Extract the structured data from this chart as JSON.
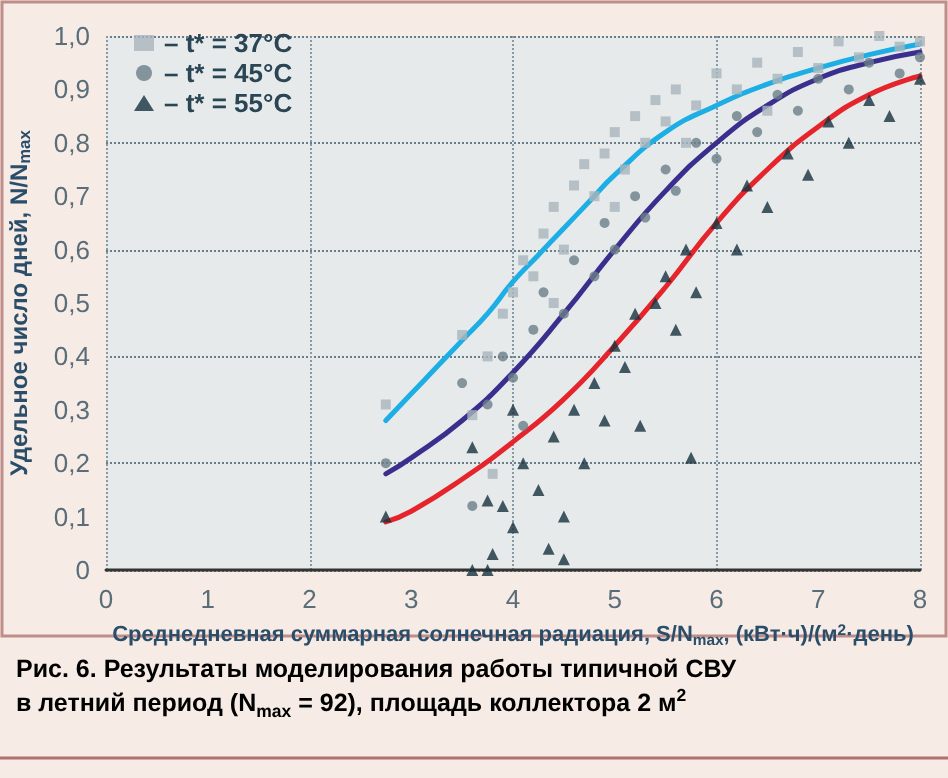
{
  "chart_data": {
    "type": "scatter",
    "xlabel": "Среднедневная суммарная солнечная радиация, S/N$_{max}$, (кВт·ч)/(м$^{2}$·день)",
    "ylabel": "Удельное число дней, N/N$_{max}$",
    "annotations": [
      "Рис. 6. Результаты моделирования работы типичной СВУ\nв летний период (N$_{max}$ = 92), площадь коллектора 2 м$^{2}$"
    ],
    "xlim": [
      0,
      8
    ],
    "xticks": [
      0,
      1,
      2,
      3,
      4,
      5,
      6,
      7,
      8
    ],
    "ylim": [
      0,
      1
    ],
    "yticks": [
      0,
      {
        "value": 0.1,
        "label": "0,1"
      },
      {
        "value": 0.2,
        "label": "0,2"
      },
      {
        "value": 0.3,
        "label": "0,3"
      },
      {
        "value": 0.4,
        "label": "0,4"
      },
      {
        "value": 0.5,
        "label": "0,5"
      },
      {
        "value": 0.6,
        "label": "0,6"
      },
      {
        "value": 0.7,
        "label": "0,7"
      },
      {
        "value": 0.8,
        "label": "0,8"
      },
      {
        "value": 0.9,
        "label": "0,9"
      },
      {
        "value": 1,
        "label": "1,0"
      }
    ],
    "grid": true,
    "legend": "top left",
    "series": [
      {
        "name": "– t* = 37°C",
        "type": "scatter",
        "marker": "square",
        "color": "#a9b5bd",
        "x": [
          2.75,
          3.5,
          3.6,
          3.75,
          3.8,
          3.9,
          4.0,
          4.1,
          4.2,
          4.3,
          4.4,
          4.4,
          4.5,
          4.6,
          4.7,
          4.8,
          4.9,
          5.0,
          5.0,
          5.1,
          5.2,
          5.3,
          5.4,
          5.5,
          5.6,
          5.7,
          5.8,
          6.0,
          6.2,
          6.4,
          6.5,
          6.6,
          6.8,
          7.0,
          7.2,
          7.4,
          7.6,
          7.8,
          8.0
        ],
        "values": [
          0.31,
          0.44,
          0.29,
          0.4,
          0.18,
          0.48,
          0.52,
          0.58,
          0.55,
          0.63,
          0.68,
          0.5,
          0.6,
          0.72,
          0.76,
          0.7,
          0.78,
          0.82,
          0.68,
          0.75,
          0.85,
          0.8,
          0.88,
          0.84,
          0.9,
          0.8,
          0.87,
          0.93,
          0.9,
          0.95,
          0.86,
          0.92,
          0.97,
          0.94,
          0.99,
          0.96,
          1.0,
          0.98,
          0.99
        ]
      },
      {
        "name": "– t* = 45°C",
        "type": "scatter",
        "marker": "circle",
        "color": "#6b7e89",
        "x": [
          2.75,
          3.5,
          3.6,
          3.75,
          3.9,
          4.0,
          4.1,
          4.2,
          4.3,
          4.5,
          4.6,
          4.8,
          4.9,
          5.0,
          5.2,
          5.3,
          5.5,
          5.6,
          5.8,
          6.0,
          6.2,
          6.4,
          6.6,
          6.8,
          7.0,
          7.3,
          7.5,
          7.8,
          8.0
        ],
        "values": [
          0.2,
          0.35,
          0.12,
          0.31,
          0.4,
          0.36,
          0.27,
          0.45,
          0.52,
          0.48,
          0.58,
          0.55,
          0.65,
          0.6,
          0.7,
          0.66,
          0.75,
          0.71,
          0.8,
          0.77,
          0.85,
          0.82,
          0.89,
          0.86,
          0.92,
          0.9,
          0.95,
          0.93,
          0.96
        ]
      },
      {
        "name": "– t* = 55°C",
        "type": "scatter",
        "marker": "triangle",
        "color": "#17323e",
        "x": [
          2.75,
          3.6,
          3.6,
          3.75,
          3.75,
          3.8,
          3.9,
          4.0,
          4.0,
          4.1,
          4.25,
          4.35,
          4.4,
          4.5,
          4.5,
          4.6,
          4.7,
          4.8,
          4.9,
          5.0,
          5.1,
          5.2,
          5.25,
          5.4,
          5.5,
          5.6,
          5.7,
          5.75,
          5.8,
          6.0,
          6.2,
          6.3,
          6.5,
          6.7,
          6.9,
          7.1,
          7.3,
          7.5,
          7.7,
          8.0
        ],
        "values": [
          0.1,
          0.0,
          0.23,
          0.0,
          0.13,
          0.03,
          0.12,
          0.08,
          0.3,
          0.2,
          0.15,
          0.04,
          0.25,
          0.02,
          0.1,
          0.3,
          0.2,
          0.35,
          0.28,
          0.42,
          0.38,
          0.48,
          0.27,
          0.5,
          0.55,
          0.45,
          0.6,
          0.21,
          0.52,
          0.65,
          0.6,
          0.72,
          0.68,
          0.78,
          0.74,
          0.84,
          0.8,
          0.88,
          0.85,
          0.92
        ]
      },
      {
        "type": "line",
        "marker": "none",
        "color": "#1eaee6",
        "x": [
          2.75,
          3.0,
          3.25,
          3.5,
          3.75,
          4.0,
          4.25,
          4.5,
          4.75,
          5.0,
          5.5,
          6.0,
          6.5,
          7.0,
          7.5,
          8.0
        ],
        "values": [
          0.28,
          0.33,
          0.38,
          0.43,
          0.48,
          0.54,
          0.59,
          0.64,
          0.69,
          0.74,
          0.82,
          0.87,
          0.91,
          0.94,
          0.965,
          0.985
        ]
      },
      {
        "type": "line",
        "marker": "none",
        "color": "#3b2f8e",
        "x": [
          2.75,
          3.0,
          3.5,
          4.0,
          4.5,
          5.0,
          5.5,
          6.0,
          6.5,
          7.0,
          7.5,
          8.0
        ],
        "values": [
          0.18,
          0.21,
          0.28,
          0.37,
          0.48,
          0.6,
          0.71,
          0.8,
          0.87,
          0.92,
          0.95,
          0.97
        ]
      },
      {
        "type": "line",
        "marker": "none",
        "color": "#e5242b",
        "x": [
          2.75,
          3.0,
          3.5,
          4.0,
          4.5,
          5.0,
          5.5,
          6.0,
          6.5,
          7.0,
          7.5,
          8.0
        ],
        "values": [
          0.09,
          0.11,
          0.17,
          0.24,
          0.32,
          0.42,
          0.53,
          0.65,
          0.75,
          0.83,
          0.89,
          0.925
        ]
      }
    ]
  }
}
